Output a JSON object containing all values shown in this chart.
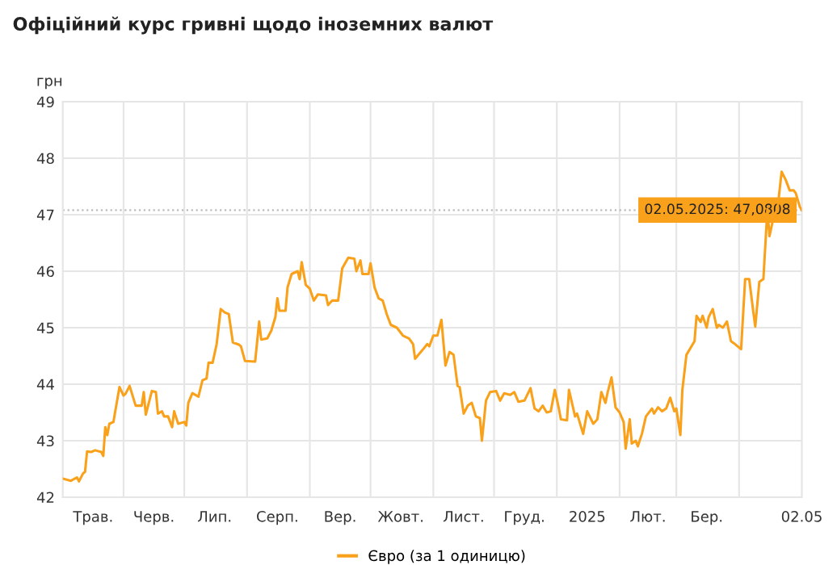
{
  "chart_data": {
    "type": "line",
    "title": "Офіційний курс гривні щодо іноземних валют",
    "ylabel": "грн",
    "xlim": [
      "2024-05-02",
      "2025-05-02"
    ],
    "ylim": [
      42,
      49
    ],
    "yticks": [
      42,
      43,
      44,
      45,
      46,
      47,
      48,
      49
    ],
    "xticks": [
      {
        "value": "2024-05-17",
        "label": "Трав."
      },
      {
        "value": "2024-06-01",
        "label": null
      },
      {
        "value": "2024-06-16",
        "label": "Черв."
      },
      {
        "value": "2024-07-01",
        "label": null
      },
      {
        "value": "2024-07-16",
        "label": "Лип."
      },
      {
        "value": "2024-08-01",
        "label": null
      },
      {
        "value": "2024-08-16",
        "label": "Серп."
      },
      {
        "value": "2024-09-01",
        "label": null
      },
      {
        "value": "2024-09-16",
        "label": "Вер."
      },
      {
        "value": "2024-10-01",
        "label": null
      },
      {
        "value": "2024-10-16",
        "label": "Жовт."
      },
      {
        "value": "2024-11-01",
        "label": null
      },
      {
        "value": "2024-11-16",
        "label": "Лист."
      },
      {
        "value": "2024-12-01",
        "label": null
      },
      {
        "value": "2024-12-16",
        "label": "Груд."
      },
      {
        "value": "2025-01-01",
        "label": null
      },
      {
        "value": "2025-01-16",
        "label": "2025"
      },
      {
        "value": "2025-02-01",
        "label": null
      },
      {
        "value": "2025-02-15",
        "label": "Лют."
      },
      {
        "value": "2025-03-01",
        "label": null
      },
      {
        "value": "2025-03-16",
        "label": "Бер."
      },
      {
        "value": "2025-04-01",
        "label": null
      },
      {
        "value": "2025-05-02",
        "label": "02.05"
      }
    ],
    "grid": true,
    "legend": "bottom",
    "marker": "none",
    "line_style": "solid",
    "ref_lines": [
      {
        "axis": "y",
        "value": 47.0808,
        "color": "#bbbbbb",
        "line_style": "dotted"
      }
    ],
    "annotations": [
      {
        "text": "02.05.2025: 47,0808",
        "x": "2025-05-02",
        "y": 47.0808
      }
    ],
    "series": [
      {
        "name": "Євро (за 1 одиницю)",
        "color": "#f9a11b",
        "x": [
          "2024-05-02",
          "2024-05-06",
          "2024-05-09",
          "2024-05-10",
          "2024-05-12",
          "2024-05-13",
          "2024-05-14",
          "2024-05-16",
          "2024-05-18",
          "2024-05-21",
          "2024-05-22",
          "2024-05-23",
          "2024-05-24",
          "2024-05-25",
          "2024-05-27",
          "2024-05-30",
          "2024-06-01",
          "2024-06-02",
          "2024-06-04",
          "2024-06-07",
          "2024-06-10",
          "2024-06-11",
          "2024-06-12",
          "2024-06-15",
          "2024-06-17",
          "2024-06-18",
          "2024-06-20",
          "2024-06-21",
          "2024-06-23",
          "2024-06-25",
          "2024-06-26",
          "2024-06-28",
          "2024-07-01",
          "2024-07-02",
          "2024-07-03",
          "2024-07-05",
          "2024-07-08",
          "2024-07-10",
          "2024-07-12",
          "2024-07-13",
          "2024-07-15",
          "2024-07-17",
          "2024-07-19",
          "2024-07-21",
          "2024-07-23",
          "2024-07-25",
          "2024-07-28",
          "2024-07-29",
          "2024-07-31",
          "2024-08-05",
          "2024-08-07",
          "2024-08-08",
          "2024-08-11",
          "2024-08-13",
          "2024-08-15",
          "2024-08-16",
          "2024-08-17",
          "2024-08-20",
          "2024-08-21",
          "2024-08-23",
          "2024-08-26",
          "2024-08-27",
          "2024-08-28",
          "2024-08-30",
          "2024-09-01",
          "2024-09-03",
          "2024-09-05",
          "2024-09-09",
          "2024-09-10",
          "2024-09-12",
          "2024-09-15",
          "2024-09-17",
          "2024-09-20",
          "2024-09-23",
          "2024-09-24",
          "2024-09-26",
          "2024-09-27",
          "2024-09-30",
          "2024-10-01",
          "2024-10-03",
          "2024-10-05",
          "2024-10-07",
          "2024-10-09",
          "2024-10-11",
          "2024-10-14",
          "2024-10-17",
          "2024-10-20",
          "2024-10-22",
          "2024-10-23",
          "2024-10-27",
          "2024-10-29",
          "2024-10-30",
          "2024-11-01",
          "2024-11-03",
          "2024-11-05",
          "2024-11-07",
          "2024-11-09",
          "2024-11-11",
          "2024-11-13",
          "2024-11-14",
          "2024-11-16",
          "2024-11-18",
          "2024-11-20",
          "2024-11-22",
          "2024-11-24",
          "2024-11-25",
          "2024-11-27",
          "2024-11-29",
          "2024-12-02",
          "2024-12-04",
          "2024-12-06",
          "2024-12-09",
          "2024-12-11",
          "2024-12-13",
          "2024-12-16",
          "2024-12-19",
          "2024-12-21",
          "2024-12-23",
          "2024-12-25",
          "2024-12-27",
          "2024-12-29",
          "2024-12-31",
          "2025-01-02",
          "2025-01-03",
          "2025-01-06",
          "2025-01-07",
          "2025-01-10",
          "2025-01-11",
          "2025-01-14",
          "2025-01-16",
          "2025-01-19",
          "2025-01-21",
          "2025-01-23",
          "2025-01-25",
          "2025-01-26",
          "2025-01-28",
          "2025-01-30",
          "2025-02-01",
          "2025-02-03",
          "2025-02-04",
          "2025-02-06",
          "2025-02-07",
          "2025-02-09",
          "2025-02-10",
          "2025-02-12",
          "2025-02-14",
          "2025-02-17",
          "2025-02-18",
          "2025-02-20",
          "2025-02-22",
          "2025-02-24",
          "2025-02-26",
          "2025-02-28",
          "2025-03-01",
          "2025-03-03",
          "2025-03-04",
          "2025-03-06",
          "2025-03-10",
          "2025-03-11",
          "2025-03-13",
          "2025-03-14",
          "2025-03-16",
          "2025-03-17",
          "2025-03-19",
          "2025-03-21",
          "2025-03-22",
          "2025-03-24",
          "2025-03-26",
          "2025-03-28",
          "2025-03-30",
          "2025-04-02",
          "2025-04-04",
          "2025-04-06",
          "2025-04-08",
          "2025-04-09",
          "2025-04-11",
          "2025-04-13",
          "2025-04-15",
          "2025-04-16",
          "2025-04-18",
          "2025-04-20",
          "2025-04-22",
          "2025-04-24",
          "2025-04-26",
          "2025-04-28",
          "2025-04-29",
          "2025-05-01",
          "2025-05-02"
        ],
        "values": [
          42.33,
          42.29,
          42.35,
          42.28,
          42.42,
          42.45,
          42.81,
          42.8,
          42.83,
          42.8,
          42.73,
          43.24,
          43.1,
          43.3,
          43.33,
          43.95,
          43.8,
          43.83,
          43.97,
          43.62,
          43.62,
          43.86,
          43.46,
          43.88,
          43.86,
          43.48,
          43.52,
          43.43,
          43.43,
          43.24,
          43.52,
          43.3,
          43.33,
          43.27,
          43.67,
          43.84,
          43.78,
          44.07,
          44.1,
          44.38,
          44.38,
          44.71,
          45.33,
          45.27,
          45.24,
          44.74,
          44.7,
          44.67,
          44.41,
          44.4,
          45.11,
          44.79,
          44.81,
          44.95,
          45.19,
          45.52,
          45.3,
          45.3,
          45.71,
          45.95,
          46.0,
          45.86,
          46.16,
          45.76,
          45.69,
          45.48,
          45.59,
          45.57,
          45.4,
          45.48,
          45.48,
          46.05,
          46.24,
          46.22,
          46.0,
          46.19,
          45.95,
          45.95,
          46.14,
          45.71,
          45.52,
          45.48,
          45.24,
          45.05,
          45.0,
          44.86,
          44.81,
          44.71,
          44.45,
          44.62,
          44.71,
          44.67,
          44.86,
          44.86,
          45.14,
          44.33,
          44.57,
          44.52,
          43.97,
          43.95,
          43.48,
          43.62,
          43.67,
          43.43,
          43.4,
          43.0,
          43.71,
          43.86,
          43.88,
          43.71,
          43.84,
          43.81,
          43.86,
          43.69,
          43.71,
          43.93,
          43.57,
          43.52,
          43.62,
          43.5,
          43.52,
          43.9,
          43.57,
          43.38,
          43.36,
          43.9,
          43.43,
          43.48,
          43.12,
          43.52,
          43.3,
          43.38,
          43.86,
          43.67,
          43.84,
          44.12,
          43.59,
          43.5,
          43.33,
          42.86,
          43.38,
          42.95,
          43.0,
          42.9,
          43.12,
          43.43,
          43.57,
          43.48,
          43.59,
          43.52,
          43.57,
          43.76,
          43.52,
          43.57,
          43.1,
          43.9,
          44.52,
          44.76,
          45.21,
          45.1,
          45.21,
          45.0,
          45.19,
          45.33,
          45.0,
          45.05,
          45.0,
          45.11,
          44.76,
          44.71,
          44.62,
          45.86,
          45.86,
          45.29,
          45.02,
          45.81,
          45.86,
          47.1,
          46.62,
          46.95,
          47.1,
          47.76,
          47.62,
          47.43,
          47.43,
          47.38,
          47.14,
          47.0808
        ]
      }
    ]
  }
}
